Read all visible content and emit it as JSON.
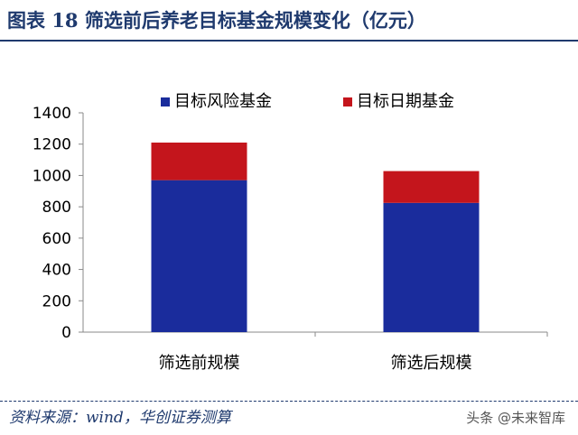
{
  "header": {
    "title": "图表 18   筛选前后养老目标基金规模变化（亿元）"
  },
  "footer": {
    "source": "资料来源：wind，华创证券测算",
    "watermark": "头条 @未来智库"
  },
  "chart_data": {
    "type": "bar",
    "stacked": true,
    "categories": [
      "筛选前规模",
      "筛选后规模"
    ],
    "series": [
      {
        "name": "目标风险基金",
        "values": [
          970,
          825
        ],
        "color": "#1a2c9c"
      },
      {
        "name": "目标日期基金",
        "values": [
          240,
          203
        ],
        "color": "#c4151c"
      }
    ],
    "ylim": [
      0,
      1400
    ],
    "yticks": [
      0,
      200,
      400,
      600,
      800,
      1000,
      1200,
      1400
    ],
    "legend": "top",
    "grid": false,
    "xlabel": "",
    "ylabel": ""
  }
}
